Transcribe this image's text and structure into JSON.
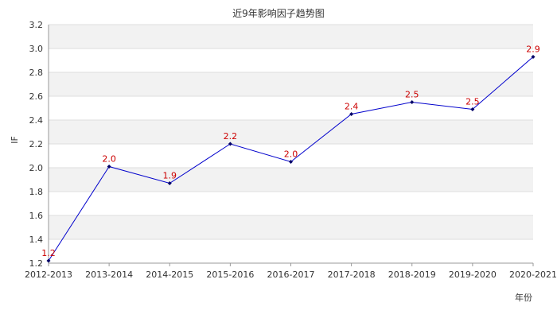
{
  "chart_data": {
    "type": "line",
    "title": "近9年影响因子趋势图",
    "xlabel": "年份",
    "ylabel": "IF",
    "categories": [
      "2012-2013",
      "2013-2014",
      "2014-2015",
      "2015-2016",
      "2016-2017",
      "2017-2018",
      "2018-2019",
      "2019-2020",
      "2020-2021"
    ],
    "series": [
      {
        "values": [
          1.22,
          2.01,
          1.87,
          2.2,
          2.05,
          2.45,
          2.55,
          2.49,
          2.93
        ],
        "data_labels": [
          "1.2",
          "2.0",
          "1.9",
          "2.2",
          "2.0",
          "2.4",
          "2.5",
          "2.5",
          "2.9"
        ]
      }
    ],
    "ylim": [
      1.2,
      3.2
    ],
    "yticks": [
      "1.2",
      "1.4",
      "1.6",
      "1.8",
      "2.0",
      "2.2",
      "2.4",
      "2.6",
      "2.8",
      "3.0",
      "3.2"
    ],
    "grid": true,
    "colors": {
      "line": "#0000cc",
      "marker": "#000066",
      "data_label": "#cc0000",
      "band": "#f2f2f2",
      "gridline": "#dddddd",
      "axis": "#999999"
    }
  }
}
